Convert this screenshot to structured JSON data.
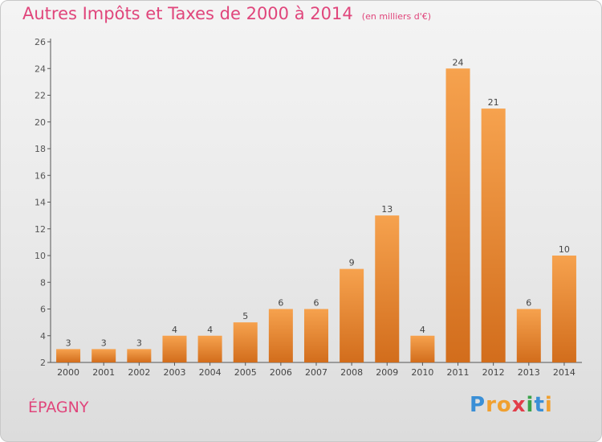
{
  "header": {
    "title": "Autres Impôts et Taxes de 2000 à 2014",
    "subtitle": "(en milliers d'€)"
  },
  "commune": "ÉPAGNY",
  "logo": {
    "letters": [
      "P",
      "r",
      "o",
      "x",
      "i",
      "t",
      "i"
    ],
    "colors": [
      "#3a8fd6",
      "#f0a030",
      "#f0a030",
      "#e23d4a",
      "#3aa34a",
      "#3a8fd6",
      "#f0a030"
    ]
  },
  "colors": {
    "bar_top": "#f6a24e",
    "bar_bottom": "#d26d1c",
    "accent": "#e0457b"
  },
  "chart_data": {
    "type": "bar",
    "categories": [
      "2000",
      "2001",
      "2002",
      "2003",
      "2004",
      "2005",
      "2006",
      "2007",
      "2008",
      "2009",
      "2010",
      "2011",
      "2012",
      "2013",
      "2014"
    ],
    "values": [
      3,
      3,
      3,
      4,
      4,
      5,
      6,
      6,
      9,
      13,
      4,
      24,
      21,
      6,
      10
    ],
    "ylim": [
      2,
      26
    ],
    "yticks": [
      2,
      4,
      6,
      8,
      10,
      12,
      14,
      16,
      18,
      20,
      22,
      24,
      26
    ],
    "grid": false,
    "legend": "none"
  }
}
